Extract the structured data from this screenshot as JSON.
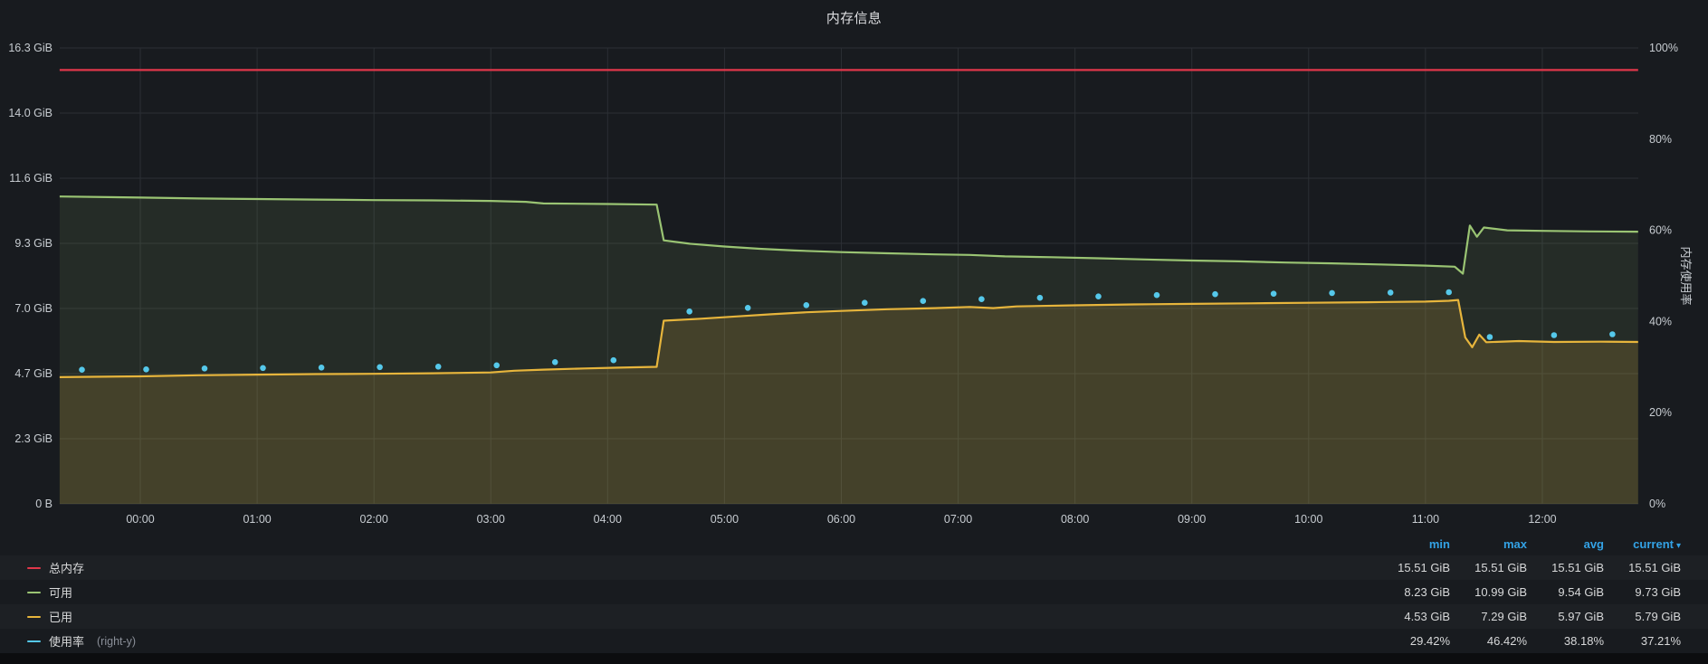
{
  "panel": {
    "title": "内存信息"
  },
  "axes": {
    "left_ticks": [
      "0 B",
      "2.3 GiB",
      "4.7 GiB",
      "7.0 GiB",
      "9.3 GiB",
      "11.6 GiB",
      "14.0 GiB",
      "16.3 GiB"
    ],
    "right_ticks": [
      "0%",
      "20%",
      "40%",
      "60%",
      "80%",
      "100%"
    ],
    "right_axis_title": "内存使用率",
    "x_ticks": [
      "00:00",
      "01:00",
      "02:00",
      "03:00",
      "04:00",
      "05:00",
      "06:00",
      "07:00",
      "08:00",
      "09:00",
      "10:00",
      "11:00",
      "12:00"
    ]
  },
  "legend": {
    "columns": [
      "min",
      "max",
      "avg",
      "current"
    ],
    "sort_column": "current",
    "sort_caret": "▾",
    "rows": [
      {
        "label": "总内存",
        "color": "#e0374a",
        "min": "15.51 GiB",
        "max": "15.51 GiB",
        "avg": "15.51 GiB",
        "current": "15.51 GiB"
      },
      {
        "label": "可用",
        "color": "#9ac473",
        "min": "8.23 GiB",
        "max": "10.99 GiB",
        "avg": "9.54 GiB",
        "current": "9.73 GiB"
      },
      {
        "label": "已用",
        "color": "#e7b53c",
        "min": "4.53 GiB",
        "max": "7.29 GiB",
        "avg": "5.97 GiB",
        "current": "5.79 GiB"
      },
      {
        "label": "使用率",
        "suffix": "(right-y)",
        "color": "#55c8ea",
        "min": "29.42%",
        "max": "46.42%",
        "avg": "38.18%",
        "current": "37.21%"
      }
    ]
  },
  "chart_data": {
    "type": "line",
    "title": "内存信息",
    "x_unit": "hours_from_00:00",
    "x_range": [
      -0.69,
      12.82
    ],
    "x_tick_hours": [
      0,
      1,
      2,
      3,
      4,
      5,
      6,
      7,
      8,
      9,
      10,
      11,
      12
    ],
    "x_ticks": [
      "00:00",
      "01:00",
      "02:00",
      "03:00",
      "04:00",
      "05:00",
      "06:00",
      "07:00",
      "08:00",
      "09:00",
      "10:00",
      "11:00",
      "12:00"
    ],
    "grid": true,
    "y_left": {
      "ticks": [
        "0 B",
        "2.3 GiB",
        "4.7 GiB",
        "7.0 GiB",
        "9.3 GiB",
        "11.6 GiB",
        "14.0 GiB",
        "16.3 GiB"
      ],
      "max": 16.3,
      "unit": "GiB"
    },
    "y_right": {
      "ticks": [
        "0%",
        "20%",
        "40%",
        "60%",
        "80%",
        "100%"
      ],
      "max": 100,
      "unit": "%",
      "title": "内存使用率"
    },
    "series": [
      {
        "name": "总内存",
        "axis": "left",
        "color": "#e0374a",
        "style": "line",
        "points": [
          [
            -0.69,
            15.51
          ],
          [
            12.82,
            15.51
          ]
        ]
      },
      {
        "name": "可用",
        "axis": "left",
        "color": "#9ac473",
        "style": "line",
        "fill": true,
        "fill_opacity": 0.1,
        "points": [
          [
            -0.69,
            10.99
          ],
          [
            0,
            10.95
          ],
          [
            0.5,
            10.92
          ],
          [
            1,
            10.9
          ],
          [
            1.5,
            10.88
          ],
          [
            2,
            10.86
          ],
          [
            2.5,
            10.85
          ],
          [
            3,
            10.83
          ],
          [
            3.3,
            10.8
          ],
          [
            3.45,
            10.74
          ],
          [
            4,
            10.72
          ],
          [
            4.42,
            10.7
          ],
          [
            4.48,
            9.42
          ],
          [
            4.7,
            9.3
          ],
          [
            5,
            9.2
          ],
          [
            5.3,
            9.12
          ],
          [
            5.6,
            9.06
          ],
          [
            6,
            9.0
          ],
          [
            6.4,
            8.96
          ],
          [
            6.8,
            8.92
          ],
          [
            7.1,
            8.9
          ],
          [
            7.4,
            8.85
          ],
          [
            7.8,
            8.82
          ],
          [
            8.2,
            8.78
          ],
          [
            8.6,
            8.74
          ],
          [
            9,
            8.7
          ],
          [
            9.4,
            8.67
          ],
          [
            9.8,
            8.63
          ],
          [
            10.2,
            8.6
          ],
          [
            10.6,
            8.56
          ],
          [
            11,
            8.52
          ],
          [
            11.25,
            8.48
          ],
          [
            11.32,
            8.23
          ],
          [
            11.38,
            9.95
          ],
          [
            11.44,
            9.55
          ],
          [
            11.5,
            9.88
          ],
          [
            11.7,
            9.78
          ],
          [
            12,
            9.76
          ],
          [
            12.4,
            9.74
          ],
          [
            12.82,
            9.73
          ]
        ]
      },
      {
        "name": "已用",
        "axis": "left",
        "color": "#e7b53c",
        "style": "line",
        "fill": true,
        "fill_opacity": 0.16,
        "points": [
          [
            -0.69,
            4.53
          ],
          [
            0,
            4.56
          ],
          [
            0.5,
            4.6
          ],
          [
            1,
            4.62
          ],
          [
            1.5,
            4.64
          ],
          [
            2,
            4.65
          ],
          [
            2.5,
            4.67
          ],
          [
            3,
            4.7
          ],
          [
            3.2,
            4.76
          ],
          [
            3.45,
            4.8
          ],
          [
            3.8,
            4.84
          ],
          [
            4.1,
            4.87
          ],
          [
            4.42,
            4.9
          ],
          [
            4.48,
            6.55
          ],
          [
            4.8,
            6.62
          ],
          [
            5.1,
            6.7
          ],
          [
            5.4,
            6.78
          ],
          [
            5.7,
            6.85
          ],
          [
            6,
            6.9
          ],
          [
            6.4,
            6.96
          ],
          [
            6.8,
            7.0
          ],
          [
            7.1,
            7.04
          ],
          [
            7.3,
            7.0
          ],
          [
            7.5,
            7.06
          ],
          [
            8,
            7.1
          ],
          [
            8.5,
            7.13
          ],
          [
            9,
            7.15
          ],
          [
            9.5,
            7.17
          ],
          [
            10,
            7.19
          ],
          [
            10.5,
            7.21
          ],
          [
            11,
            7.23
          ],
          [
            11.2,
            7.26
          ],
          [
            11.28,
            7.29
          ],
          [
            11.34,
            5.95
          ],
          [
            11.4,
            5.6
          ],
          [
            11.46,
            6.05
          ],
          [
            11.52,
            5.78
          ],
          [
            11.8,
            5.82
          ],
          [
            12.1,
            5.79
          ],
          [
            12.5,
            5.8
          ],
          [
            12.82,
            5.79
          ]
        ]
      },
      {
        "name": "使用率",
        "axis": "right",
        "color": "#55c8ea",
        "style": "points",
        "points": [
          [
            -0.5,
            29.42
          ],
          [
            0.05,
            29.5
          ],
          [
            0.55,
            29.7
          ],
          [
            1.05,
            29.8
          ],
          [
            1.55,
            29.9
          ],
          [
            2.05,
            30.0
          ],
          [
            2.55,
            30.1
          ],
          [
            3.05,
            30.4
          ],
          [
            3.55,
            31.1
          ],
          [
            4.05,
            31.5
          ],
          [
            4.7,
            42.2
          ],
          [
            5.2,
            43.0
          ],
          [
            5.7,
            43.6
          ],
          [
            6.2,
            44.1
          ],
          [
            6.7,
            44.5
          ],
          [
            7.2,
            44.9
          ],
          [
            7.7,
            45.2
          ],
          [
            8.2,
            45.5
          ],
          [
            8.7,
            45.8
          ],
          [
            9.2,
            46.0
          ],
          [
            9.7,
            46.1
          ],
          [
            10.2,
            46.25
          ],
          [
            10.7,
            46.35
          ],
          [
            11.2,
            46.42
          ],
          [
            11.55,
            36.6
          ],
          [
            12.1,
            37.0
          ],
          [
            12.6,
            37.21
          ]
        ]
      }
    ]
  }
}
